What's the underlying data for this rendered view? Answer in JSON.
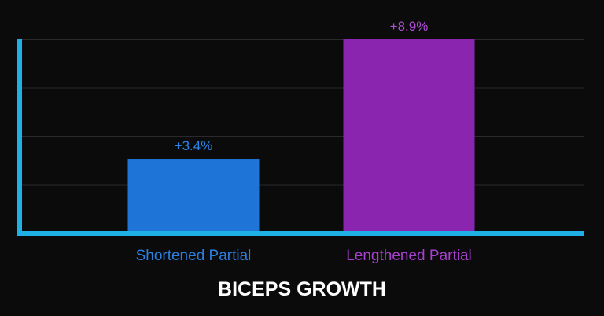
{
  "chart_data": {
    "type": "bar",
    "title": "BICEPS GROWTH",
    "categories": [
      "Shortened Partial",
      "Lengthened Partial"
    ],
    "values": [
      3.4,
      8.9
    ],
    "data_labels": [
      "+3.4%",
      "+8.9%"
    ],
    "colors": [
      "#1f74d8",
      "#8a25b0"
    ],
    "axis_color": "#1fb0e6",
    "ylim": [
      0,
      8.9
    ],
    "grid": true,
    "xlabel": "",
    "ylabel": ""
  }
}
